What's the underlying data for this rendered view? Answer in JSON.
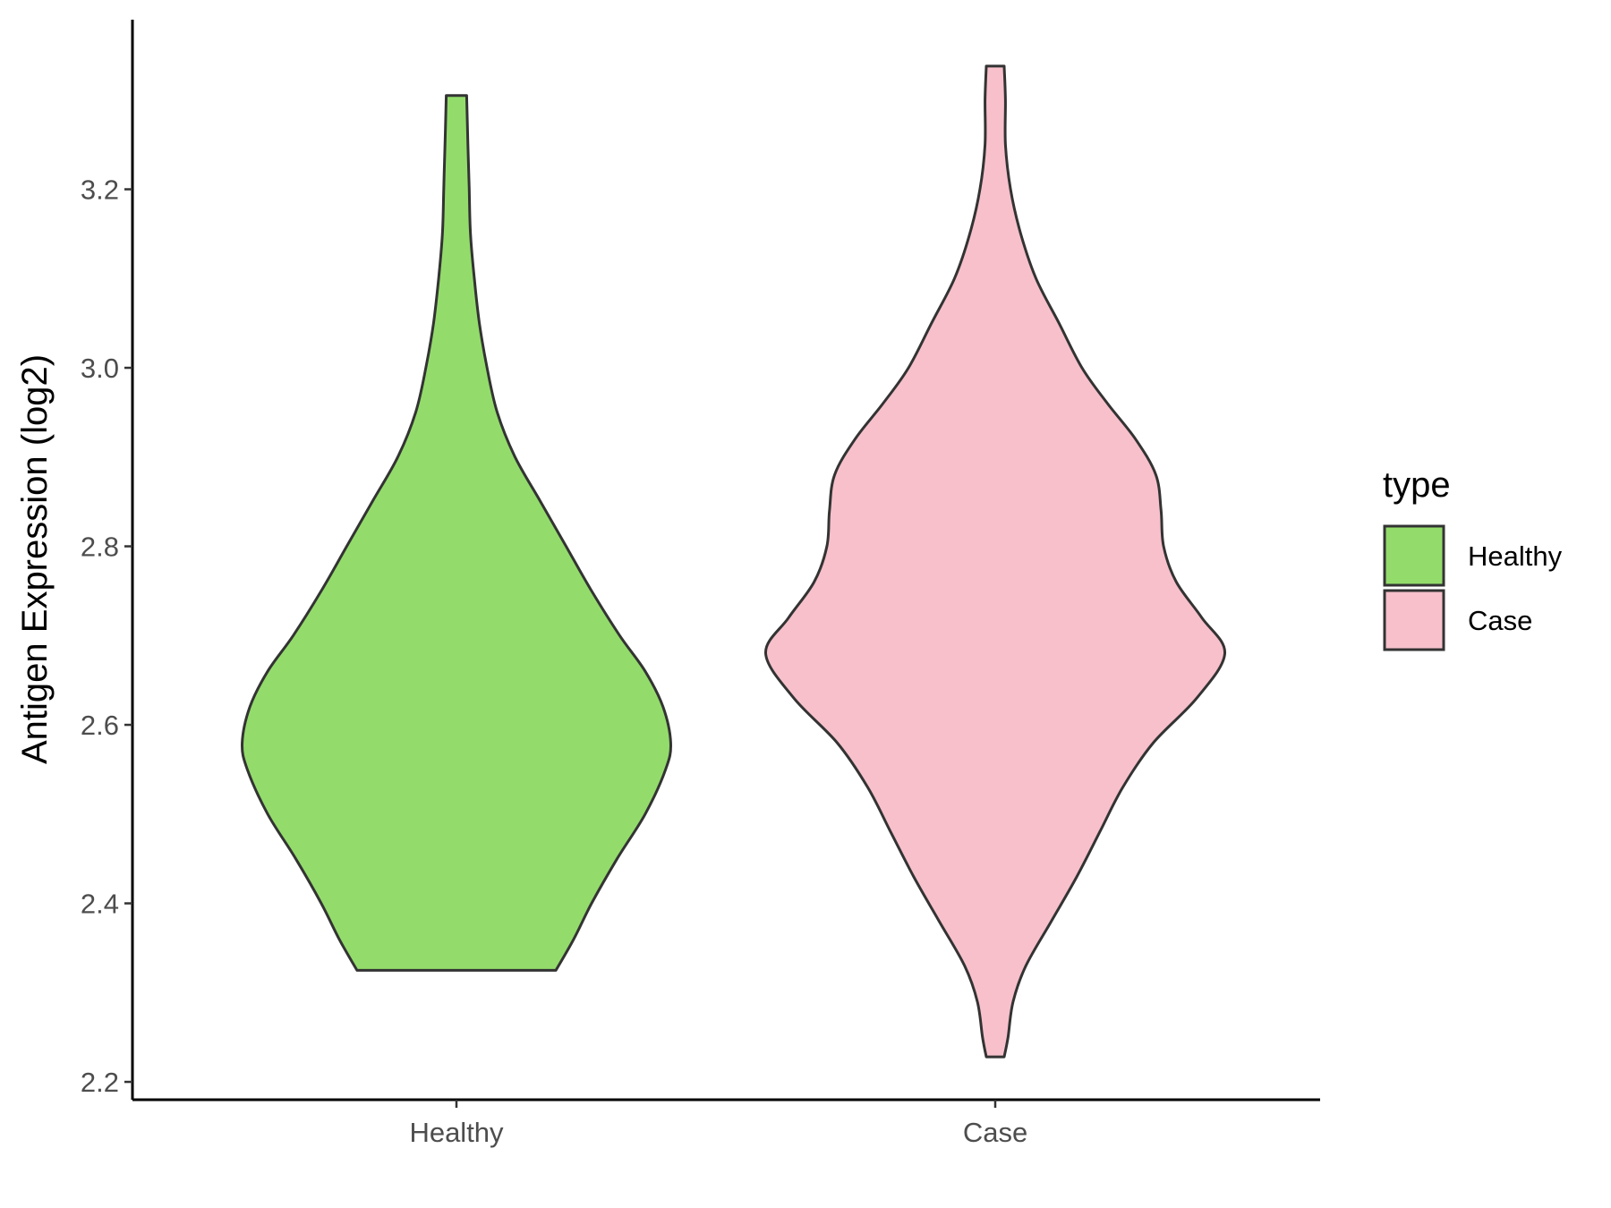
{
  "chart_data": {
    "type": "violin",
    "title": "",
    "xlabel": "",
    "ylabel": "Antigen Expression (log2)",
    "ylim": [
      2.18,
      3.39
    ],
    "yticks": [
      "2.2",
      "2.4",
      "2.6",
      "2.8",
      "3.0",
      "3.2"
    ],
    "grid": false,
    "categories": [
      "Healthy",
      "Case"
    ],
    "legend": {
      "title": "type",
      "position": "right",
      "entries": [
        "Healthy",
        "Case"
      ]
    },
    "series": [
      {
        "name": "Healthy",
        "color": "#93dc6b",
        "min": 2.325,
        "max": 3.305,
        "density": [
          [
            2.325,
            0.39
          ],
          [
            2.36,
            0.46
          ],
          [
            2.4,
            0.53
          ],
          [
            2.45,
            0.63
          ],
          [
            2.5,
            0.74
          ],
          [
            2.55,
            0.82
          ],
          [
            2.58,
            0.84
          ],
          [
            2.62,
            0.81
          ],
          [
            2.66,
            0.74
          ],
          [
            2.7,
            0.64
          ],
          [
            2.75,
            0.53
          ],
          [
            2.8,
            0.43
          ],
          [
            2.85,
            0.33
          ],
          [
            2.9,
            0.23
          ],
          [
            2.95,
            0.16
          ],
          [
            3.0,
            0.12
          ],
          [
            3.05,
            0.09
          ],
          [
            3.1,
            0.07
          ],
          [
            3.15,
            0.055
          ],
          [
            3.2,
            0.05
          ],
          [
            3.25,
            0.045
          ],
          [
            3.305,
            0.04
          ]
        ]
      },
      {
        "name": "Case",
        "color": "#f7c0cb",
        "min": 2.228,
        "max": 3.338,
        "density": [
          [
            2.228,
            0.035
          ],
          [
            2.25,
            0.05
          ],
          [
            2.29,
            0.07
          ],
          [
            2.33,
            0.12
          ],
          [
            2.38,
            0.22
          ],
          [
            2.43,
            0.32
          ],
          [
            2.48,
            0.41
          ],
          [
            2.53,
            0.5
          ],
          [
            2.58,
            0.62
          ],
          [
            2.63,
            0.79
          ],
          [
            2.68,
            0.9
          ],
          [
            2.72,
            0.81
          ],
          [
            2.76,
            0.71
          ],
          [
            2.8,
            0.66
          ],
          [
            2.84,
            0.65
          ],
          [
            2.88,
            0.63
          ],
          [
            2.92,
            0.55
          ],
          [
            2.96,
            0.44
          ],
          [
            3.0,
            0.34
          ],
          [
            3.05,
            0.25
          ],
          [
            3.1,
            0.16
          ],
          [
            3.15,
            0.1
          ],
          [
            3.2,
            0.06
          ],
          [
            3.25,
            0.04
          ],
          [
            3.3,
            0.04
          ],
          [
            3.338,
            0.035
          ]
        ]
      }
    ]
  }
}
